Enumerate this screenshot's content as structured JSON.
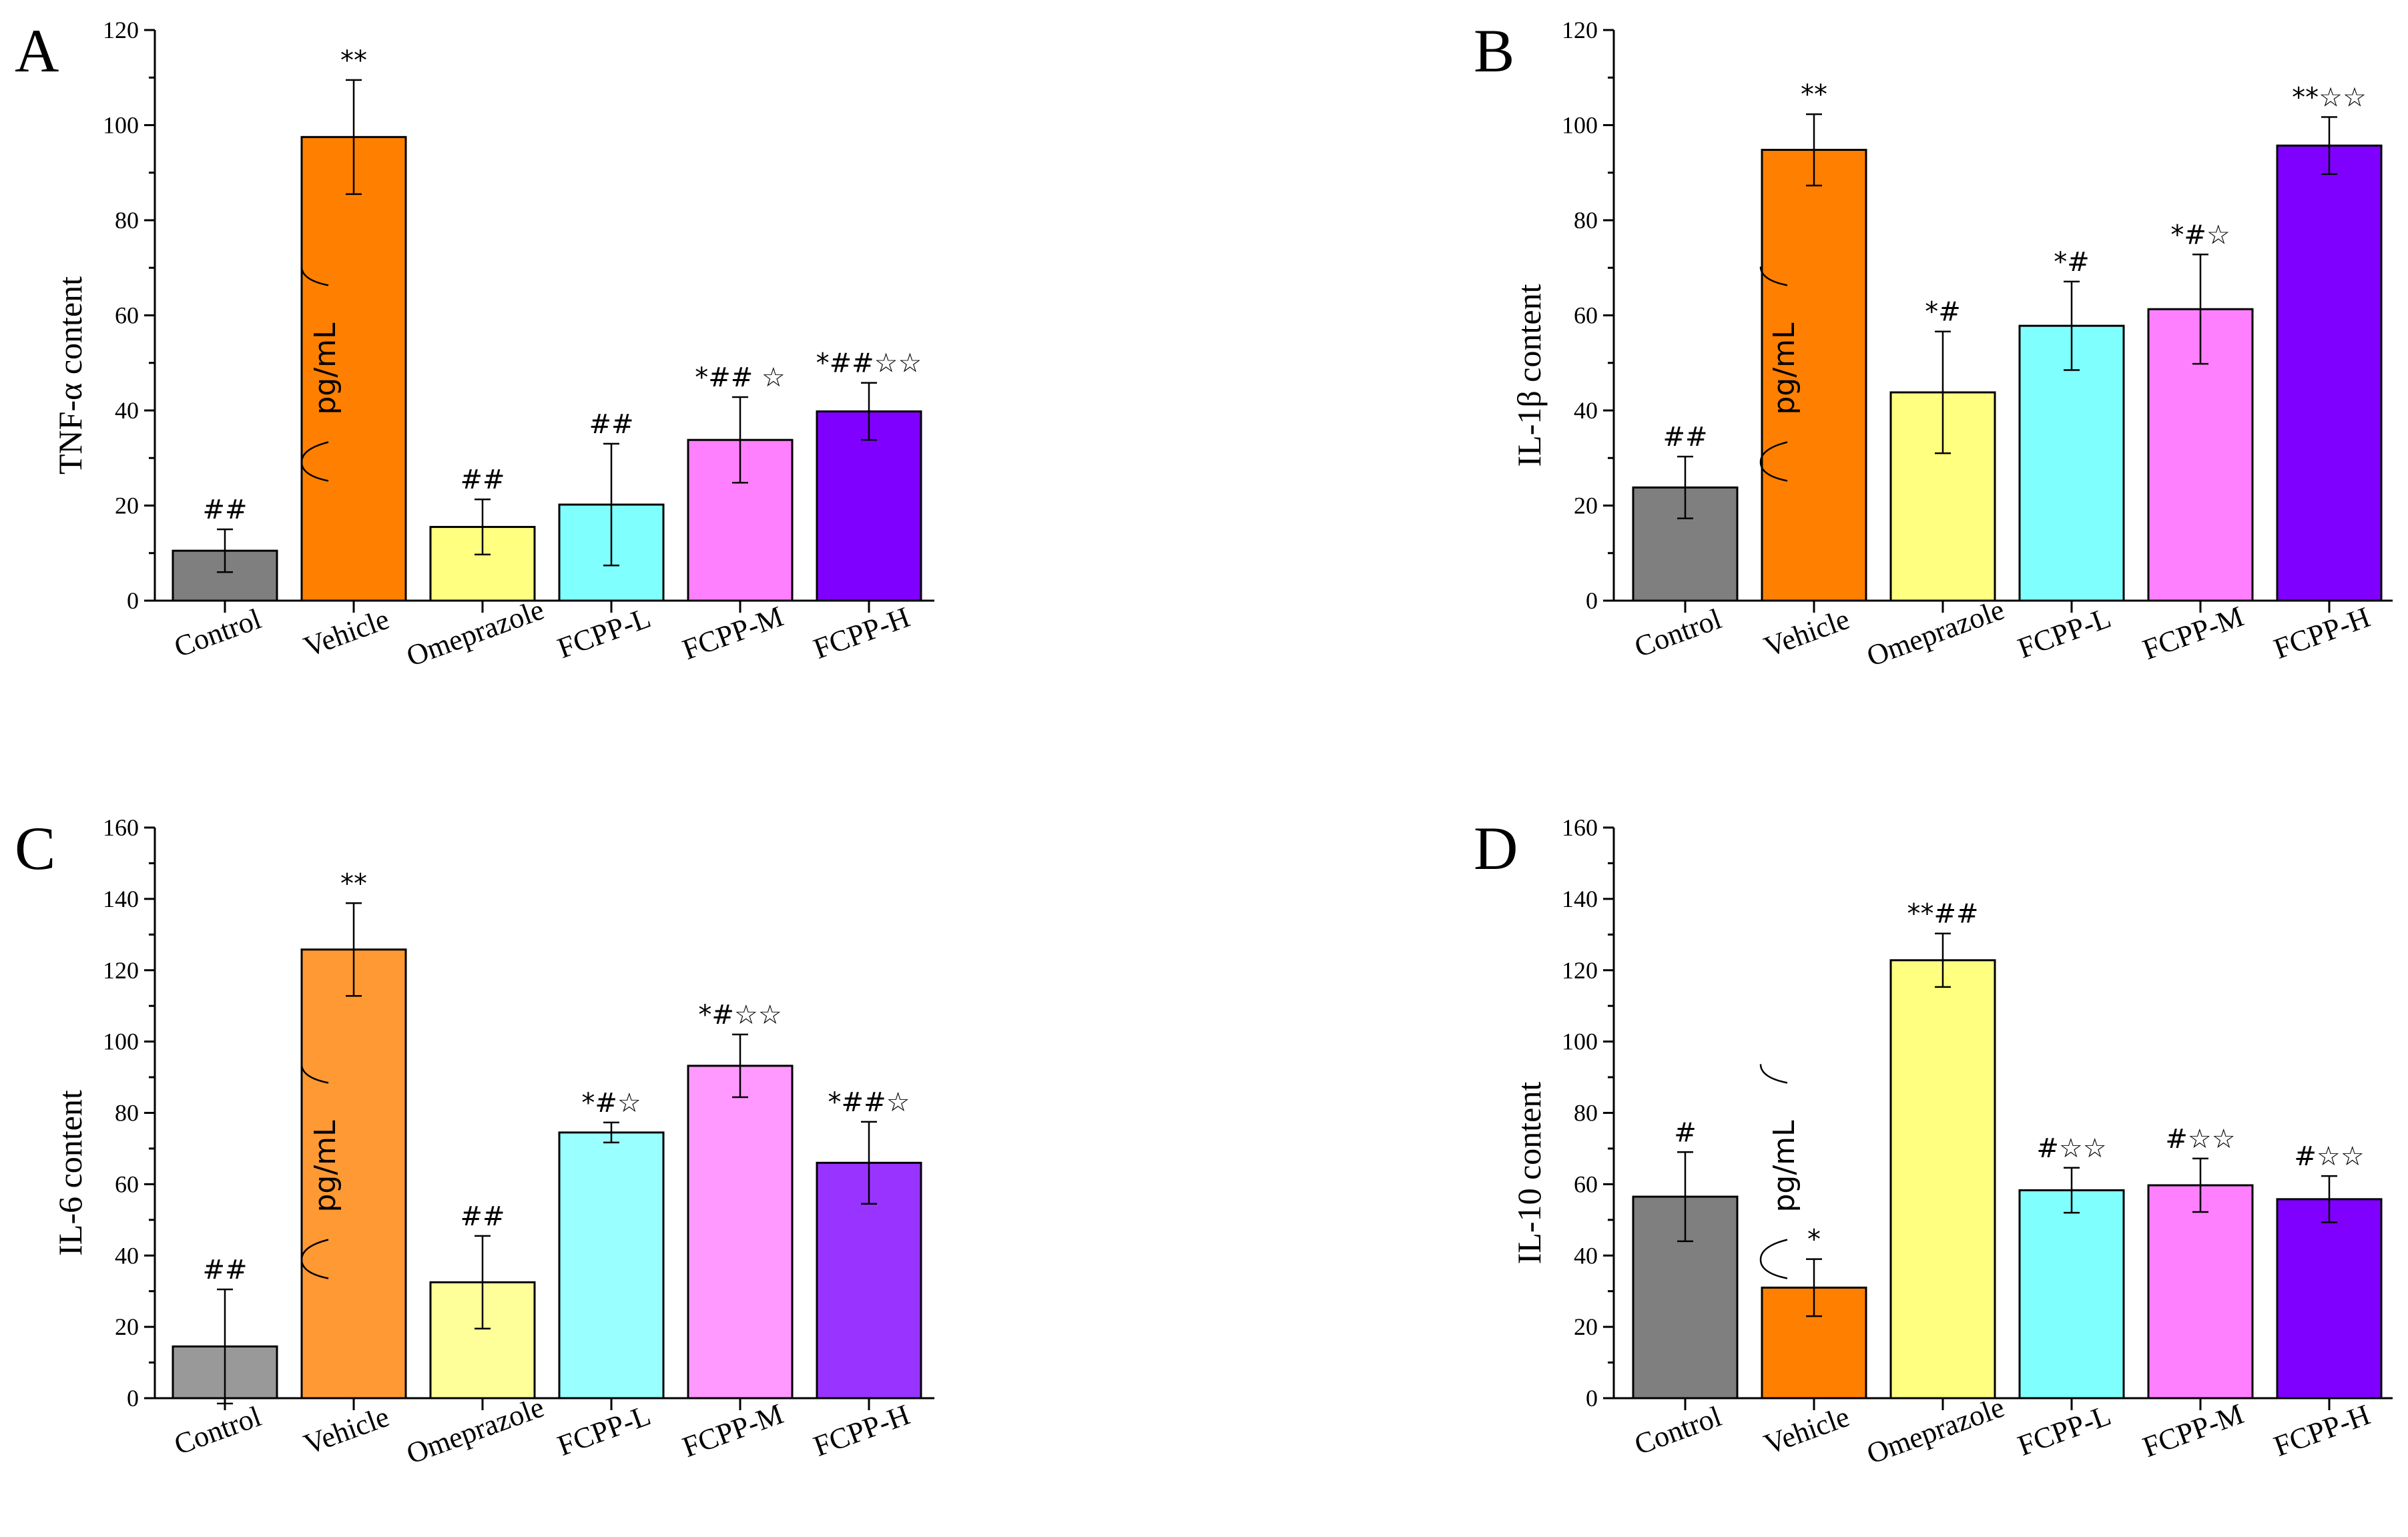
{
  "chart_data": [
    {
      "panel": "A",
      "type": "bar",
      "ylabel": "TNF-α content",
      "unit": "pg/mL",
      "ylim": [
        0,
        120
      ],
      "yticks": [
        0,
        20,
        40,
        60,
        80,
        100,
        120
      ],
      "categories": [
        "Control",
        "Vehicle",
        "Omeprazole",
        "FCPP-L",
        "FCPP-M",
        "FCPP-H"
      ],
      "values": [
        10.5,
        97.5,
        15.5,
        20.2,
        33.8,
        39.8
      ],
      "errors": [
        4.5,
        12,
        5.8,
        12.8,
        9,
        6
      ],
      "significance": [
        "##",
        "**",
        "##",
        "##",
        "*## ☆",
        "*##☆☆"
      ],
      "colors": [
        "#7f7f7f",
        "#ff8000",
        "#ffff80",
        "#80ffff",
        "#ff80ff",
        "#8000ff"
      ]
    },
    {
      "panel": "B",
      "type": "bar",
      "ylabel": "IL-1β content",
      "unit": "pg/mL",
      "ylim": [
        0,
        120
      ],
      "yticks": [
        0,
        20,
        40,
        60,
        80,
        100,
        120
      ],
      "categories": [
        "Control",
        "Vehicle",
        "Omeprazole",
        "FCPP-L",
        "FCPP-M",
        "FCPP-H"
      ],
      "values": [
        23.8,
        94.8,
        43.8,
        57.8,
        61.3,
        95.7
      ],
      "errors": [
        6.5,
        7.5,
        12.8,
        9.3,
        11.5,
        6
      ],
      "significance": [
        "##",
        "**",
        "*#",
        "*#",
        "*#☆",
        "**☆☆"
      ],
      "colors": [
        "#7f7f7f",
        "#ff8000",
        "#ffff80",
        "#80ffff",
        "#ff80ff",
        "#8000ff"
      ]
    },
    {
      "panel": "C",
      "type": "bar",
      "ylabel": "IL-6 content",
      "unit": "pg/mL",
      "ylim": [
        0,
        160
      ],
      "yticks": [
        0,
        20,
        40,
        60,
        80,
        100,
        120,
        140,
        160
      ],
      "categories": [
        "Control",
        "Vehicle",
        "Omeprazole",
        "FCPP-L",
        "FCPP-M",
        "FCPP-H"
      ],
      "values": [
        14.5,
        125.8,
        32.5,
        74.5,
        93.2,
        66
      ],
      "errors": [
        16,
        13,
        13,
        2.8,
        8.8,
        11.5
      ],
      "significance": [
        "##",
        "**",
        "##",
        "*#☆",
        "*#☆☆",
        "*##☆"
      ],
      "colors": [
        "#999999",
        "#ff9933",
        "#ffff99",
        "#99ffff",
        "#ff99ff",
        "#9933ff"
      ]
    },
    {
      "panel": "D",
      "type": "bar",
      "ylabel": "IL-10 content",
      "unit": "pg/mL",
      "ylim": [
        0,
        160
      ],
      "yticks": [
        0,
        20,
        40,
        60,
        80,
        100,
        120,
        140,
        160
      ],
      "categories": [
        "Control",
        "Vehicle",
        "Omeprazole",
        "FCPP-L",
        "FCPP-M",
        "FCPP-H"
      ],
      "values": [
        56.5,
        31,
        122.8,
        58.3,
        59.7,
        55.8
      ],
      "errors": [
        12.5,
        8,
        7.5,
        6.3,
        7.5,
        6.5
      ],
      "significance": [
        "#",
        "*",
        "**##",
        "#☆☆",
        "#☆☆",
        "#☆☆"
      ],
      "colors": [
        "#7f7f7f",
        "#ff8000",
        "#ffff80",
        "#80ffff",
        "#ff80ff",
        "#8000ff"
      ]
    }
  ]
}
